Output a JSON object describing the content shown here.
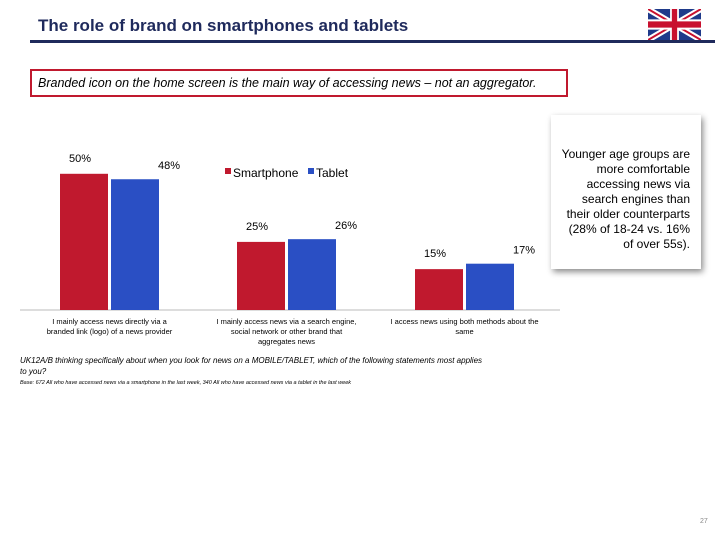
{
  "title": "The role of brand on smartphones and tablets",
  "banner": "Branded icon on the home screen is the main way of accessing news – not an aggregator.",
  "callout": "Younger age groups are more comfortable accessing news via search engines than their older counterparts (28% of 18-24 vs. 16% of over 55s).",
  "question": "UK12A/B thinking specifically about when you look for news on a MOBILE/TABLET, which of the following statements most applies to you?",
  "base": "Base: 672 All who have accessed news via a smartphone in the last week, 340 All who have accessed news via a tablet in the last week",
  "page_number": "27",
  "flag_icon": "uk-flag-icon",
  "chart_data": {
    "type": "bar",
    "categories": [
      "I mainly access news directly via a branded link (logo) of a news provider",
      "I mainly access news via a search engine, social network or other brand that aggregates news",
      "I access news using both methods about the same"
    ],
    "series": [
      {
        "name": "Smartphone",
        "values": [
          50,
          25,
          15
        ],
        "labels": [
          "50%",
          "25%",
          "15%"
        ],
        "color": "#c0192e"
      },
      {
        "name": "Tablet",
        "values": [
          48,
          26,
          17
        ],
        "labels": [
          "48%",
          "26%",
          "17%"
        ],
        "color": "#2a4fc4"
      }
    ],
    "ylim": [
      0,
      58
    ],
    "title": "",
    "xlabel": "",
    "ylabel": "",
    "legend": "top-center",
    "grid": false
  }
}
